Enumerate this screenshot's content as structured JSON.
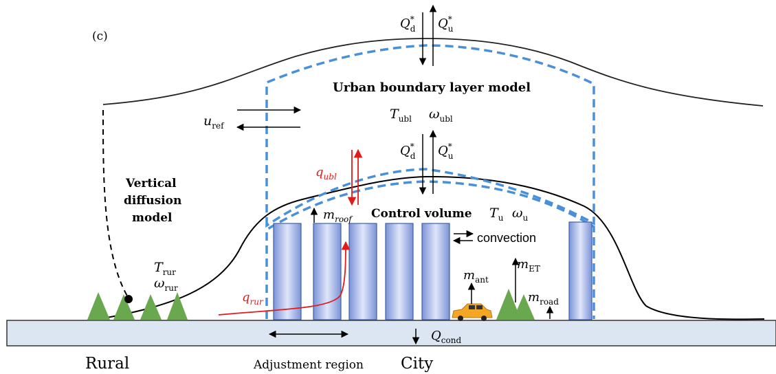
{
  "panel_label": "(c)",
  "titles": {
    "ubl_model": "Urban boundary layer model",
    "vertical_diffusion_line1": "Vertical",
    "vertical_diffusion_line2": "diffusion",
    "vertical_diffusion_line3": "model",
    "control_volume": "Control volume"
  },
  "symbols": {
    "Q_main": "Q",
    "sub_d": "d",
    "sub_u": "u",
    "sup_star": "*",
    "T": "T",
    "omega": "ω",
    "sub_ubl": "ubl",
    "u": "u",
    "sub_ref": "ref",
    "q": "q",
    "sub_ubl_it": "ubl",
    "sub_rur": "rur",
    "m": "m",
    "sub_roof": "roof",
    "sub_ant": "ant",
    "sub_ET": "ET",
    "sub_road": "road",
    "sub_cond": "cond"
  },
  "labels": {
    "convection": "convection",
    "rural": "Rural",
    "city": "City",
    "adjustment_region": "Adjustment region"
  },
  "colors": {
    "dashed_box": "#4a90d9",
    "red_flux": "#e31a1c",
    "building_edge": "#3f5fa8",
    "tree": "#6aa84f",
    "ground": "#dce6f2",
    "car": "#f5a623"
  }
}
